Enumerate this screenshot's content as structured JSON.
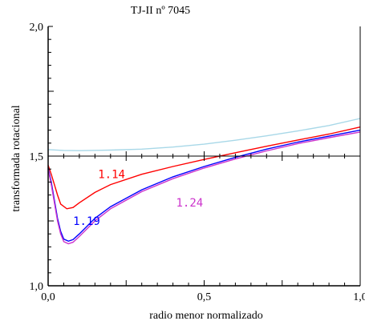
{
  "chart_data": {
    "type": "line",
    "title": "TJ-II nº 7045",
    "xlabel": "radio menor normalizado",
    "ylabel": "transformada rotacional",
    "xlim": [
      0,
      1
    ],
    "ylim": [
      1,
      2
    ],
    "x_ticks": [
      {
        "value": 0,
        "label": "0,0"
      },
      {
        "value": 0.5,
        "label": "0,5"
      },
      {
        "value": 1,
        "label": "1,0"
      }
    ],
    "y_ticks": [
      {
        "value": 1,
        "label": "1,0"
      },
      {
        "value": 1.5,
        "label": "1,5"
      },
      {
        "value": 2,
        "label": "2,0"
      }
    ],
    "reference_line": {
      "y": 1.5
    },
    "grid": false,
    "series": [
      {
        "name": "",
        "color": "#a8d8e8",
        "points": [
          [
            0,
            1.525
          ],
          [
            0.05,
            1.522
          ],
          [
            0.1,
            1.521
          ],
          [
            0.2,
            1.523
          ],
          [
            0.3,
            1.527
          ],
          [
            0.4,
            1.535
          ],
          [
            0.5,
            1.546
          ],
          [
            0.6,
            1.561
          ],
          [
            0.7,
            1.578
          ],
          [
            0.8,
            1.597
          ],
          [
            0.9,
            1.618
          ],
          [
            1.0,
            1.645
          ]
        ]
      },
      {
        "name": "",
        "label": "1.14",
        "color": "#ff0000",
        "points": [
          [
            0,
            1.465
          ],
          [
            0.01,
            1.43
          ],
          [
            0.02,
            1.39
          ],
          [
            0.03,
            1.35
          ],
          [
            0.04,
            1.315
          ],
          [
            0.06,
            1.297
          ],
          [
            0.08,
            1.302
          ],
          [
            0.1,
            1.32
          ],
          [
            0.15,
            1.36
          ],
          [
            0.2,
            1.39
          ],
          [
            0.3,
            1.43
          ],
          [
            0.4,
            1.46
          ],
          [
            0.5,
            1.487
          ],
          [
            0.6,
            1.513
          ],
          [
            0.7,
            1.538
          ],
          [
            0.8,
            1.562
          ],
          [
            0.9,
            1.585
          ],
          [
            1.0,
            1.612
          ]
        ]
      },
      {
        "name": "",
        "label": "1.19",
        "color": "#0000ff",
        "points": [
          [
            0,
            1.455
          ],
          [
            0.01,
            1.4
          ],
          [
            0.02,
            1.33
          ],
          [
            0.03,
            1.26
          ],
          [
            0.04,
            1.21
          ],
          [
            0.05,
            1.18
          ],
          [
            0.065,
            1.172
          ],
          [
            0.08,
            1.178
          ],
          [
            0.1,
            1.2
          ],
          [
            0.15,
            1.26
          ],
          [
            0.2,
            1.305
          ],
          [
            0.3,
            1.37
          ],
          [
            0.4,
            1.42
          ],
          [
            0.5,
            1.46
          ],
          [
            0.6,
            1.495
          ],
          [
            0.7,
            1.527
          ],
          [
            0.8,
            1.554
          ],
          [
            0.9,
            1.577
          ],
          [
            1.0,
            1.6
          ]
        ]
      },
      {
        "name": "",
        "label": "1.24",
        "color": "#cc33cc",
        "points": [
          [
            0,
            1.45
          ],
          [
            0.01,
            1.39
          ],
          [
            0.02,
            1.32
          ],
          [
            0.03,
            1.25
          ],
          [
            0.04,
            1.2
          ],
          [
            0.05,
            1.17
          ],
          [
            0.065,
            1.162
          ],
          [
            0.08,
            1.168
          ],
          [
            0.1,
            1.19
          ],
          [
            0.15,
            1.25
          ],
          [
            0.2,
            1.297
          ],
          [
            0.3,
            1.363
          ],
          [
            0.4,
            1.413
          ],
          [
            0.5,
            1.454
          ],
          [
            0.6,
            1.489
          ],
          [
            0.7,
            1.52
          ],
          [
            0.8,
            1.548
          ],
          [
            0.9,
            1.571
          ],
          [
            1.0,
            1.593
          ]
        ]
      }
    ],
    "annotations": [
      {
        "text": "1.14",
        "color": "#ff0000",
        "x": 0.16,
        "y": 1.415
      },
      {
        "text": "1.19",
        "color": "#0000ff",
        "x": 0.08,
        "y": 1.235
      },
      {
        "text": "1.24",
        "color": "#cc33cc",
        "x": 0.41,
        "y": 1.305
      }
    ]
  }
}
